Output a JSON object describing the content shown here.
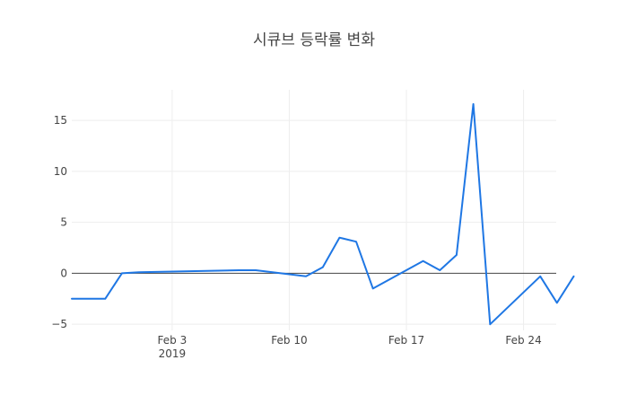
{
  "chart_data": {
    "type": "line",
    "title": "시큐브 등락률 변화",
    "xlabel": "",
    "ylabel": "",
    "x_ticks": [
      {
        "date": "2019-02-03",
        "label": "Feb 3",
        "sublabel": "2019"
      },
      {
        "date": "2019-02-10",
        "label": "Feb 10",
        "sublabel": ""
      },
      {
        "date": "2019-02-17",
        "label": "Feb 17",
        "sublabel": ""
      },
      {
        "date": "2019-02-24",
        "label": "Feb 24",
        "sublabel": ""
      }
    ],
    "y_ticks": [
      15,
      10,
      5,
      0,
      -5
    ],
    "y_tick_labels": [
      "15",
      "10",
      "5",
      "0",
      "−5"
    ],
    "xlim": [
      "2019-01-28",
      "2019-02-26"
    ],
    "ylim": [
      -5.6,
      18
    ],
    "grid": true,
    "color": "#1f77e4",
    "series": [
      {
        "x": [
          "2019-01-28",
          "2019-01-29",
          "2019-01-30",
          "2019-01-31",
          "2019-02-01",
          "2019-02-07",
          "2019-02-08",
          "2019-02-11",
          "2019-02-12",
          "2019-02-13",
          "2019-02-14",
          "2019-02-15",
          "2019-02-18",
          "2019-02-19",
          "2019-02-20",
          "2019-02-21",
          "2019-02-22",
          "2019-02-25",
          "2019-02-26",
          "2019-02-27"
        ],
        "values": [
          -2.5,
          -2.5,
          -2.5,
          0.0,
          0.1,
          0.3,
          0.3,
          -0.3,
          0.6,
          3.5,
          3.1,
          -1.5,
          1.2,
          0.3,
          1.8,
          16.6,
          -5.0,
          -0.3,
          -2.9,
          -0.3
        ]
      }
    ]
  }
}
